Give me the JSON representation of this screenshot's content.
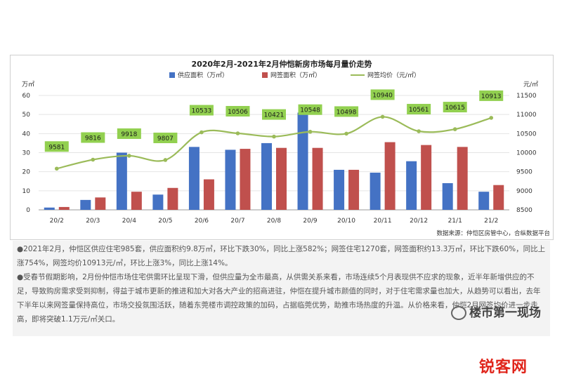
{
  "chart_data": {
    "type": "bar",
    "title": "2020年2月-2021年2月仲恺新房市场每月量价走势",
    "categories": [
      "20/2",
      "20/3",
      "20/4",
      "20/5",
      "20/6",
      "20/7",
      "20/8",
      "20/9",
      "20/10",
      "20/11",
      "20/12",
      "21/1",
      "21/2"
    ],
    "left_axis": {
      "unit": "万㎡",
      "ticks": [
        0,
        10,
        20,
        30,
        40,
        50,
        60
      ],
      "ylim": [
        0,
        60
      ]
    },
    "right_axis": {
      "unit": "元/㎡",
      "ticks": [
        8500,
        9000,
        9500,
        10000,
        10500,
        11000,
        11500
      ],
      "ylim": [
        8500,
        11500
      ]
    },
    "series": [
      {
        "name": "供应面积（万㎡）",
        "kind": "bar",
        "axis": "left",
        "color": "#4472c4",
        "values": [
          1.2,
          5.2,
          30,
          8,
          33,
          31.5,
          35,
          51,
          21,
          19.5,
          25.5,
          14,
          9.5
        ]
      },
      {
        "name": "网签面积（万㎡）",
        "kind": "bar",
        "axis": "left",
        "color": "#c0504d",
        "values": [
          1.5,
          6.5,
          9.5,
          11.5,
          16,
          32,
          32.5,
          32.5,
          21,
          35.5,
          34,
          33,
          13
        ]
      },
      {
        "name": "网签均价（元/㎡）",
        "kind": "line",
        "axis": "right",
        "color": "#9bbb59",
        "values": [
          9581,
          9816,
          9918,
          9807,
          10533,
          10506,
          10421,
          10548,
          10498,
          10940,
          10561,
          10615,
          10913
        ]
      }
    ],
    "source": "数据来源：仲恺区房管中心，合纵数据平台",
    "legend_position": "top-center"
  },
  "notes": {
    "p1": "●2021年2月，仲恺区供应住宅985套，供应面积约9.8万㎡，环比下跌30%，同比上涨582%；网签住宅1270套，网签面积约13.3万㎡，环比下跌60%，同比上涨754%，网签均价10913元/㎡，环比上涨3%，同比上涨14%。",
    "p2": "●受春节假期影响，2月份仲恺市场住宅供需环比呈现下滑，但供应量为全市最高，从供需关系来看，市场连续5个月表现供不应求的现象，近半年新增供应的不足，导致购房需求受到抑制，得益于城市更新的推进和加大对各大产业的招商进驻，仲恺在提升城市颜值的同时，对于住宅需求量也加大，从趋势可以看出，去年下半年以来网签量保持高位，市场交投氛围活跃，随着东莞楼市调控政策的加码，占据临莞优势，助推市场热度的升温。从价格来看，仲恺2月网签均价进一步走高，即将突破1.1万元/㎡关口。"
  },
  "badge": {
    "text": "楼市第一现场"
  },
  "site_logo": {
    "text": "锐客网"
  }
}
